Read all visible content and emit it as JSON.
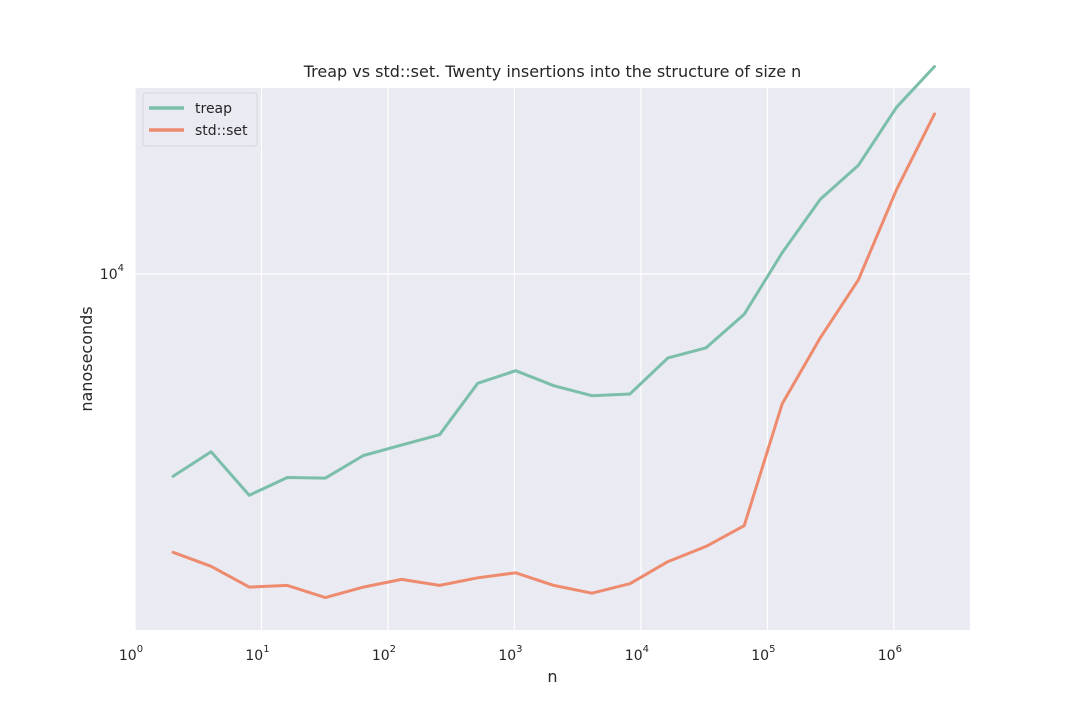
{
  "chart_data": {
    "type": "line",
    "title": "Treap vs std::set. Twenty insertions into the structure of size n",
    "xlabel": "n",
    "ylabel": "nanoseconds",
    "x_scale": "log",
    "y_scale": "log",
    "xlim": [
      1,
      4000000
    ],
    "ylim": [
      2650,
      20000
    ],
    "x_ticks": [
      {
        "value": 1,
        "base": "10",
        "exp": "0"
      },
      {
        "value": 10,
        "base": "10",
        "exp": "1"
      },
      {
        "value": 100,
        "base": "10",
        "exp": "2"
      },
      {
        "value": 1000,
        "base": "10",
        "exp": "3"
      },
      {
        "value": 10000,
        "base": "10",
        "exp": "4"
      },
      {
        "value": 100000,
        "base": "10",
        "exp": "5"
      },
      {
        "value": 1000000,
        "base": "10",
        "exp": "6"
      }
    ],
    "y_ticks": [
      {
        "value": 10000,
        "base": "10",
        "exp": "4"
      }
    ],
    "grid": true,
    "legend_position": "top-left",
    "x": [
      2,
      4,
      8,
      16,
      32,
      64,
      128,
      256,
      512,
      1024,
      2048,
      4096,
      8192,
      16384,
      32768,
      65536,
      131072,
      262144,
      524288,
      1048576,
      2097152
    ],
    "series": [
      {
        "name": "treap",
        "color": "#7bbfaa",
        "values": [
          4700,
          5150,
          4380,
          4680,
          4670,
          5080,
          5280,
          5490,
          6650,
          6970,
          6590,
          6350,
          6390,
          7310,
          7590,
          8600,
          10820,
          13210,
          14990,
          18610,
          21670
        ]
      },
      {
        "name": "std::set",
        "color": "#ee8b6e",
        "values": [
          3540,
          3360,
          3110,
          3130,
          2990,
          3110,
          3200,
          3130,
          3220,
          3280,
          3130,
          3040,
          3150,
          3420,
          3620,
          3910,
          6160,
          7880,
          9780,
          13690,
          18150
        ]
      }
    ]
  }
}
